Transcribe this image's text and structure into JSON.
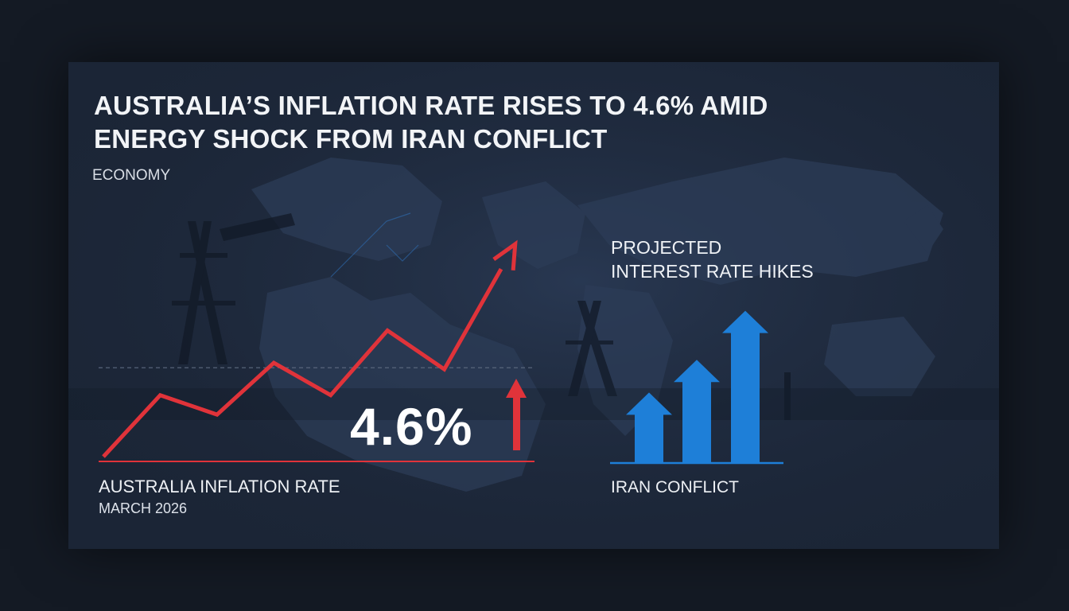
{
  "headline": {
    "line1": "AUSTRALIA’S INFLATION RATE RISES TO 4.6% AMID",
    "line2": "ENERGY SHOCK FROM IRAN CONFLICT"
  },
  "category": "ECONOMY",
  "colors": {
    "background": "#141a24",
    "card": "#1b2536",
    "inflation_line": "#e0333a",
    "hike_arrows": "#1e7fd8",
    "text": "#eef1f5"
  },
  "chart_data": [
    {
      "type": "line",
      "title": "AUSTRALIA INFLATION RATE",
      "subtitle": "MARCH 2026",
      "headline_value": "4.6%",
      "trend": "up",
      "x": [
        0,
        1,
        2,
        3,
        4,
        5,
        6,
        7
      ],
      "values": [
        0.0,
        1.9,
        1.3,
        2.9,
        1.9,
        3.9,
        2.7,
        5.8
      ],
      "ylim": [
        0,
        6
      ],
      "reference_line": 2.7,
      "ticks_shown": false
    },
    {
      "type": "bar",
      "title_line1": "PROJECTED",
      "title_line2": "INTEREST RATE HIKES",
      "xlabel": "IRAN CONFLICT",
      "categories": [
        "",
        "",
        ""
      ],
      "values": [
        1,
        1.6,
        2.5
      ],
      "ylim": [
        0,
        2.8
      ],
      "mark_style": "upward-arrows"
    }
  ]
}
